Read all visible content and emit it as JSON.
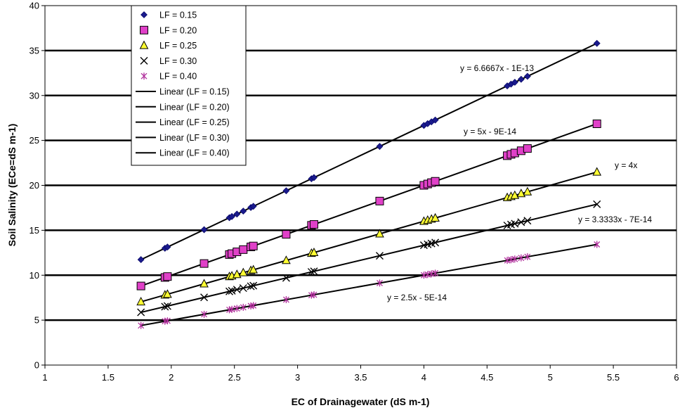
{
  "chart_data": {
    "type": "scatter",
    "xlabel": "EC of Drainagewater (dS m-1)",
    "ylabel": "Soil Salinity (ECe=dS m-1)",
    "xlim": [
      1,
      6
    ],
    "ylim": [
      0,
      40
    ],
    "x_ticks": [
      "1",
      "1.5",
      "2",
      "2.5",
      "3",
      "3.5",
      "4",
      "4.5",
      "5",
      "5.5",
      "6"
    ],
    "y_ticks": [
      "0",
      "5",
      "10",
      "15",
      "20",
      "25",
      "30",
      "35",
      "40"
    ],
    "grid": "horizontal",
    "legend_position": "top-left",
    "x": [
      1.76,
      1.95,
      1.97,
      2.26,
      2.46,
      2.48,
      2.52,
      2.57,
      2.63,
      2.65,
      2.91,
      3.11,
      3.13,
      3.65,
      4.0,
      4.03,
      4.06,
      4.09,
      4.66,
      4.69,
      4.72,
      4.77,
      4.82,
      5.37
    ],
    "series": [
      {
        "name": "LF = 0.15",
        "slope": 6.6667,
        "marker": "diamond",
        "color": "#1a1a8c"
      },
      {
        "name": "LF = 0.20",
        "slope": 5,
        "marker": "square",
        "color": "#e040c8"
      },
      {
        "name": "LF = 0.25",
        "slope": 4,
        "marker": "triangle",
        "color": "#ffff33"
      },
      {
        "name": "LF = 0.30",
        "slope": 3.3333,
        "marker": "x",
        "color": "#000000"
      },
      {
        "name": "LF = 0.40",
        "slope": 2.5,
        "marker": "star",
        "color": "#b0309c"
      }
    ],
    "trendlines": [
      {
        "name": "Linear (LF = 0.15)",
        "equation": "y = 6.6667x - 1E-13"
      },
      {
        "name": "Linear (LF = 0.20)",
        "equation": "y = 5x - 9E-14"
      },
      {
        "name": "Linear (LF = 0.25)",
        "equation": "y = 4x"
      },
      {
        "name": "Linear (LF = 0.30)",
        "equation": "y = 3.3333x - 7E-14"
      },
      {
        "name": "Linear (LF = 0.40)",
        "equation": "y = 2.5x - 5E-14"
      }
    ]
  }
}
